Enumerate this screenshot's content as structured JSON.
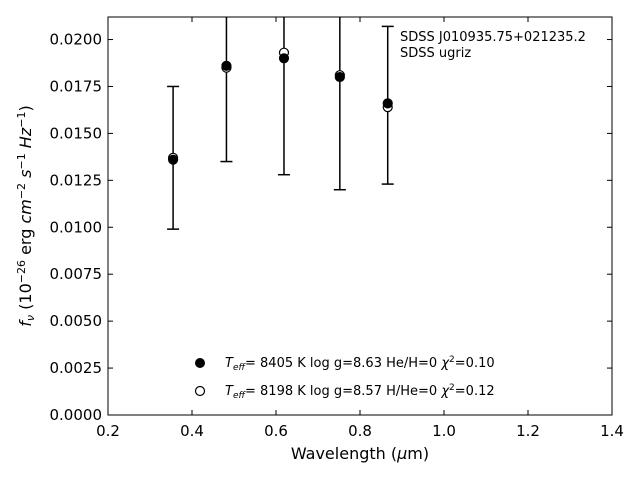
{
  "chart_data": {
    "type": "scatter",
    "xlabel": "Wavelength (μm)",
    "ylabel": "fν (10⁻²⁶ erg cm⁻² s⁻¹ Hz⁻¹)",
    "xlim": [
      0.2,
      1.4
    ],
    "ylim": [
      0.0,
      0.0212
    ],
    "x_ticks": [
      "0.2",
      "0.4",
      "0.6",
      "0.8",
      "1.0",
      "1.2",
      "1.4"
    ],
    "y_ticks": [
      "0.0000",
      "0.0025",
      "0.0050",
      "0.0075",
      "0.0100",
      "0.0125",
      "0.0150",
      "0.0175",
      "0.0200"
    ],
    "x_tick_values": [
      0.2,
      0.4,
      0.6,
      0.8,
      1.0,
      1.2,
      1.4
    ],
    "y_tick_values": [
      0.0,
      0.0025,
      0.005,
      0.0075,
      0.01,
      0.0125,
      0.015,
      0.0175,
      0.02
    ],
    "annotations": [
      "SDSS J010935.75+021235.2",
      "SDSS ugriz"
    ],
    "observed": {
      "x": [
        0.355,
        0.482,
        0.619,
        0.752,
        0.866
      ],
      "y": [
        0.0137,
        0.0185,
        0.0191,
        0.0181,
        0.0165
      ],
      "err": [
        0.0038,
        0.005,
        0.0063,
        0.0061,
        0.0042
      ]
    },
    "series": [
      {
        "name": "Teff=  8405 K  log g=8.63  He/H=0  χ²=0.10",
        "marker": "filled-circle",
        "x": [
          0.355,
          0.482,
          0.619,
          0.752,
          0.866
        ],
        "y": [
          0.0136,
          0.0186,
          0.019,
          0.018,
          0.0166
        ]
      },
      {
        "name": "Teff=  8198 K  log g=8.57  H/He=0  χ²=0.12",
        "marker": "open-circle",
        "x": [
          0.355,
          0.482,
          0.619,
          0.752,
          0.866
        ],
        "y": [
          0.0137,
          0.0185,
          0.0193,
          0.0181,
          0.0164
        ]
      }
    ],
    "legend": {
      "placement": "lower-center",
      "entries": [
        {
          "teff": "8405 K",
          "logg": "log g=8.63",
          "comp": "He/H=0",
          "chi2": "=0.10"
        },
        {
          "teff": "8198 K",
          "logg": "log g=8.57",
          "comp": "H/He=0",
          "chi2": "=0.12"
        }
      ]
    },
    "grid": false,
    "colors": {
      "marker": "#000000",
      "axes": "#000000",
      "background": "#ffffff"
    }
  }
}
